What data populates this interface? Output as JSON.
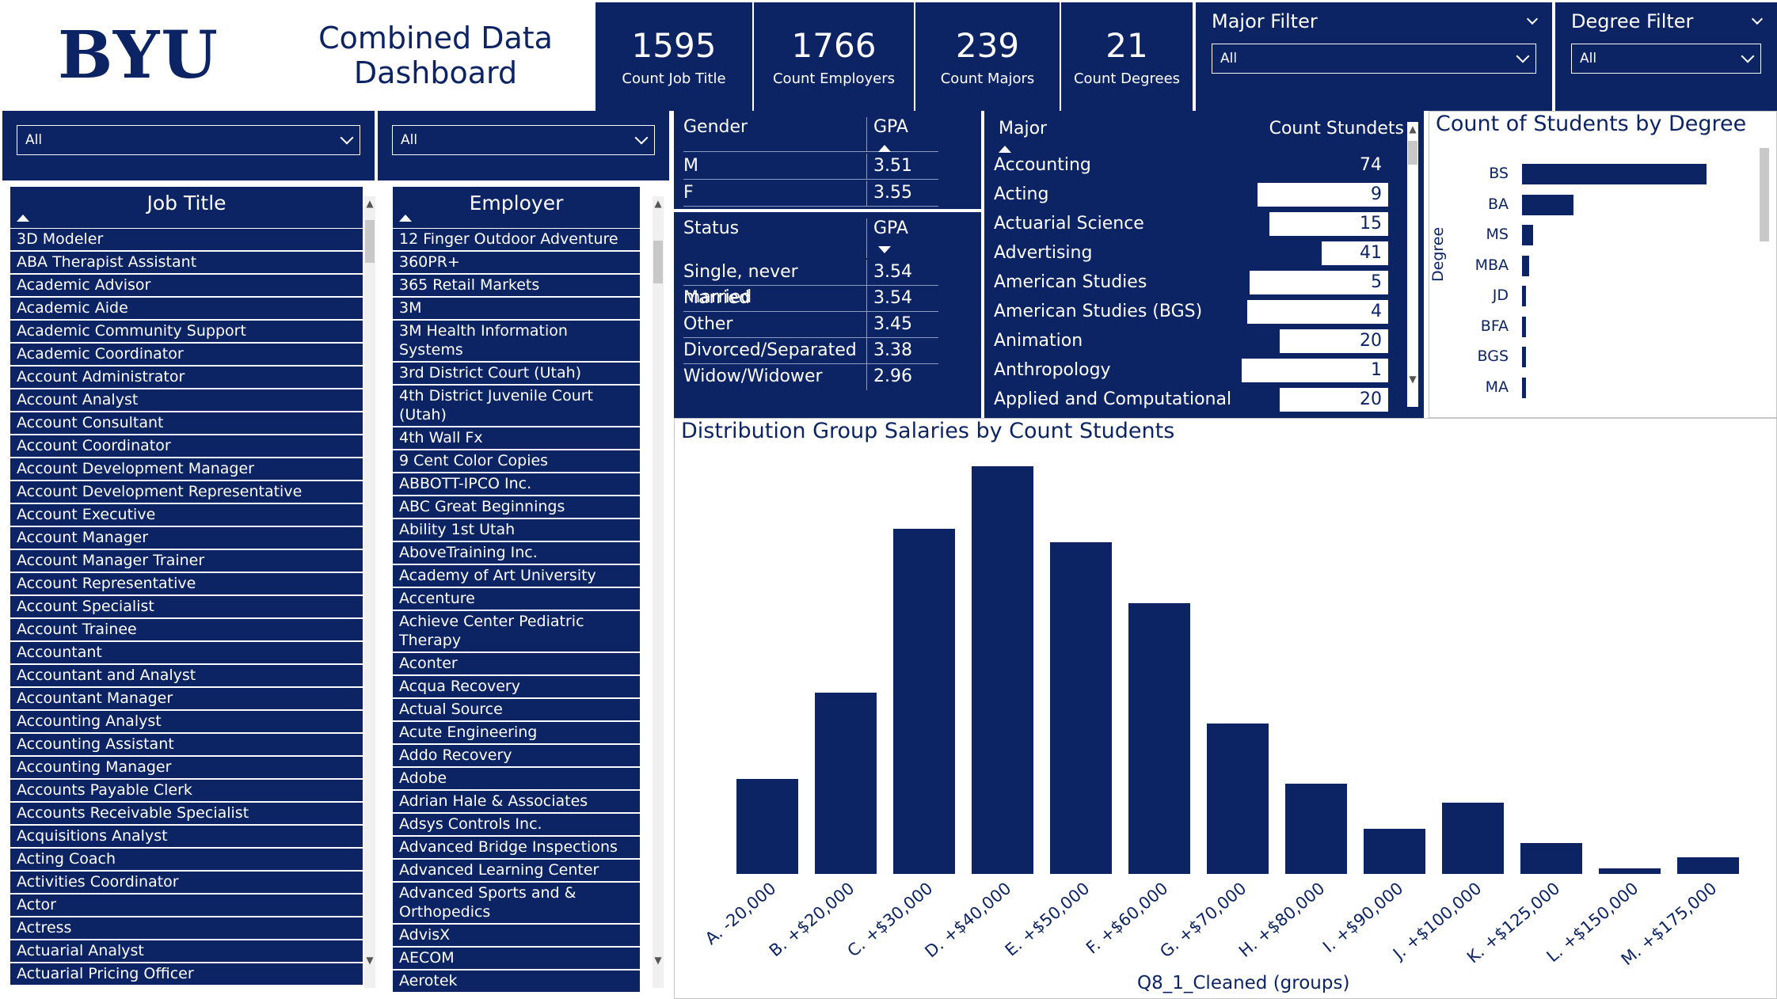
{
  "header": {
    "logo": "BYU",
    "title": "Combined Data\nDashboard"
  },
  "kpis": [
    {
      "value": "1595",
      "label": "Count Job Title"
    },
    {
      "value": "1766",
      "label": "Count Employers"
    },
    {
      "value": "239",
      "label": "Count Majors"
    },
    {
      "value": "21",
      "label": "Count Degrees"
    }
  ],
  "filters": {
    "major": {
      "title": "Major Filter",
      "value": "All"
    },
    "degree": {
      "title": "Degree Filter",
      "value": "All"
    }
  },
  "slicers": {
    "job_title": {
      "value": "All"
    },
    "employer": {
      "value": "All"
    }
  },
  "job_titles": {
    "header": "Job Title",
    "items": [
      "3D Modeler",
      "ABA Therapist Assistant",
      "Academic Advisor",
      "Academic Aide",
      "Academic Community Support",
      "Academic Coordinator",
      "Account Administrator",
      "Account Analyst",
      "Account Consultant",
      "Account Coordinator",
      "Account Development Manager",
      "Account Development Representative",
      "Account Executive",
      "Account Manager",
      "Account Manager Trainer",
      "Account Representative",
      "Account Specialist",
      "Account Trainee",
      "Accountant",
      "Accountant and Analyst",
      "Accountant Manager",
      "Accounting Analyst",
      "Accounting Assistant",
      "Accounting Manager",
      "Accounts Payable Clerk",
      "Accounts Receivable Specialist",
      "Acquisitions Analyst",
      "Acting Coach",
      "Activities Coordinator",
      "Actor",
      "Actress",
      "Actuarial Analyst",
      "Actuarial Pricing Officer"
    ]
  },
  "employers": {
    "header": "Employer",
    "items": [
      "12 Finger Outdoor Adventure",
      "360PR+",
      "365 Retail Markets",
      "3M",
      "3M Health Information Systems",
      "3rd District Court (Utah)",
      "4th District Juvenile Court (Utah)",
      "4th Wall Fx",
      "9 Cent Color Copies",
      "ABBOTT-IPCO Inc.",
      "ABC Great Beginnings",
      "Ability 1st Utah",
      "AboveTraining Inc.",
      "Academy of Art University",
      "Accenture",
      "Achieve Center Pediatric Therapy",
      "Aconter",
      "Acqua Recovery",
      "Actual Source",
      "Acute Engineering",
      "Addo Recovery",
      "Adobe",
      "Adrian Hale & Associates",
      "Adsys Controls Inc.",
      "Advanced Bridge Inspections",
      "Advanced Learning Center",
      "Advanced Sports and & Orthopedics",
      "AdvisX",
      "AECOM",
      "Aerotek"
    ]
  },
  "gender_table": {
    "col1": "Gender",
    "col2": "GPA",
    "rows": [
      {
        "k": "M",
        "v": "3.51"
      },
      {
        "k": "F",
        "v": "3.55"
      }
    ]
  },
  "status_table": {
    "col1": "Status",
    "col2": "GPA",
    "rows": [
      {
        "k": "Single, never married",
        "v": "3.54"
      },
      {
        "k": "Married",
        "v": "3.54"
      },
      {
        "k": "Other",
        "v": "3.45"
      },
      {
        "k": "Divorced/Separated",
        "v": "3.38"
      },
      {
        "k": "Widow/Widower",
        "v": "2.96"
      }
    ]
  },
  "major_table": {
    "col1": "Major",
    "col2": "Count Stundets",
    "rows": [
      {
        "name": "Accounting",
        "count": 74
      },
      {
        "name": "Acting",
        "count": 9
      },
      {
        "name": "Actuarial Science",
        "count": 15
      },
      {
        "name": "Advertising",
        "count": 41
      },
      {
        "name": "American Studies",
        "count": 5
      },
      {
        "name": "American Studies (BGS)",
        "count": 4
      },
      {
        "name": "Animation",
        "count": 20
      },
      {
        "name": "Anthropology",
        "count": 1
      },
      {
        "name": "Applied and Computational",
        "count": 20
      }
    ]
  },
  "colors": {
    "navy": "#0c2463",
    "white": "#ffffff"
  },
  "chart_data": [
    {
      "type": "bar",
      "orientation": "horizontal",
      "title": "Count of Students by Degree",
      "ylabel": "Degree",
      "categories": [
        "BS",
        "BA",
        "MS",
        "MBA",
        "JD",
        "BFA",
        "BGS",
        "MA"
      ],
      "values": [
        1010,
        280,
        60,
        40,
        20,
        15,
        12,
        10
      ]
    },
    {
      "type": "bar",
      "title": "Distribution Group Salaries by Count Students",
      "xlabel": "Q8_1_Cleaned (groups)",
      "categories": [
        "A. -20,000",
        "B. +$20,000",
        "C. +$30,000",
        "D. +$40,000",
        "E. +$50,000",
        "F. +$60,000",
        "G. +$70,000",
        "H. +$80,000",
        "I. +$90,000",
        "J. +$100,000",
        "K. +$125,000",
        "L. +$150,000",
        "M. +$175,000"
      ],
      "values": [
        84,
        160,
        305,
        360,
        293,
        239,
        133,
        80,
        40,
        63,
        27,
        5,
        15
      ],
      "ylim": [
        0,
        360
      ]
    }
  ]
}
